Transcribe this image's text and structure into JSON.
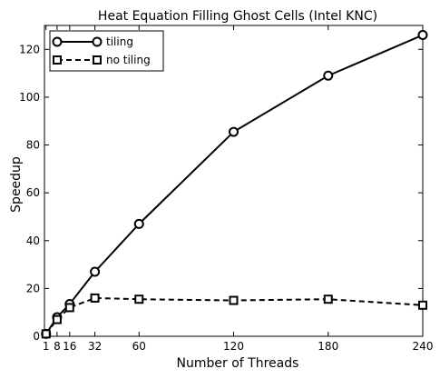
{
  "chart_data": {
    "type": "line",
    "title": "Heat Equation Filling Ghost Cells (Intel KNC)",
    "xlabel": "Number of Threads",
    "ylabel": "Speedup",
    "xlim": [
      0,
      240
    ],
    "ylim": [
      0,
      130
    ],
    "xticks": [
      1,
      8,
      16,
      32,
      60,
      120,
      180,
      240
    ],
    "yticks": [
      0,
      20,
      40,
      60,
      80,
      100,
      120
    ],
    "grid": false,
    "legend_position": "top-left",
    "series": [
      {
        "name": "tiling",
        "x": [
          1,
          8,
          16,
          32,
          60,
          120,
          180,
          240
        ],
        "y": [
          1.0,
          8.0,
          13.5,
          27.0,
          47.0,
          85.5,
          109.0,
          126.0
        ],
        "line_style": "solid",
        "marker": "circle",
        "color": "#000000"
      },
      {
        "name": "no tiling",
        "x": [
          1,
          8,
          16,
          32,
          60,
          120,
          180,
          240
        ],
        "y": [
          1.0,
          7.0,
          12.0,
          16.0,
          15.5,
          15.0,
          15.5,
          13.0
        ],
        "line_style": "dashed",
        "marker": "square",
        "color": "#000000"
      }
    ]
  }
}
